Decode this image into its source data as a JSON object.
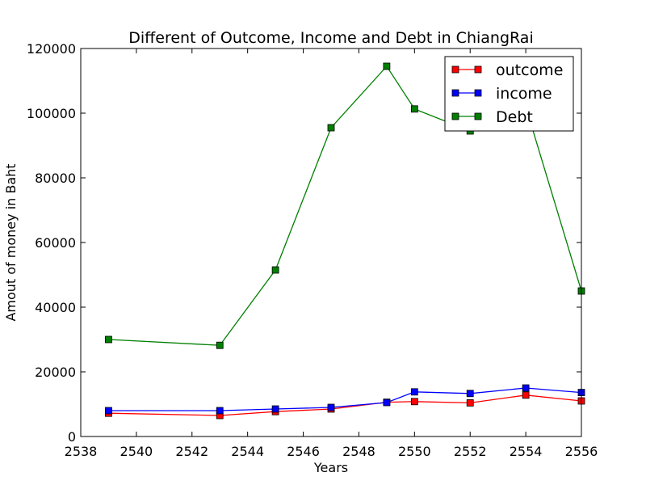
{
  "chart_data": {
    "type": "line",
    "title": "Different of Outcome, Income and Debt in ChiangRai",
    "xlabel": "Years",
    "ylabel": "Amout of money in Baht",
    "xlim": [
      2538,
      2556
    ],
    "ylim": [
      0,
      120000
    ],
    "xticks": [
      2538,
      2540,
      2542,
      2544,
      2546,
      2548,
      2550,
      2552,
      2554,
      2556
    ],
    "yticks": [
      0,
      20000,
      40000,
      60000,
      80000,
      100000,
      120000
    ],
    "x": [
      2539,
      2543,
      2545,
      2547,
      2549,
      2550,
      2552,
      2554,
      2556
    ],
    "grid": false,
    "legend_position": "top-right",
    "series": [
      {
        "name": "outcome",
        "color": "#ff0000",
        "marker": "square",
        "values": [
          7200,
          6500,
          7700,
          8500,
          10600,
          10800,
          10400,
          12800,
          11000
        ]
      },
      {
        "name": "income",
        "color": "#0000ff",
        "marker": "square",
        "values": [
          8000,
          8000,
          8500,
          9000,
          10500,
          13800,
          13300,
          15000,
          13600
        ]
      },
      {
        "name": "Debt",
        "color": "#008000",
        "marker": "square",
        "values": [
          30000,
          28200,
          51500,
          95500,
          114500,
          101300,
          94500,
          102000,
          45000
        ]
      }
    ]
  }
}
